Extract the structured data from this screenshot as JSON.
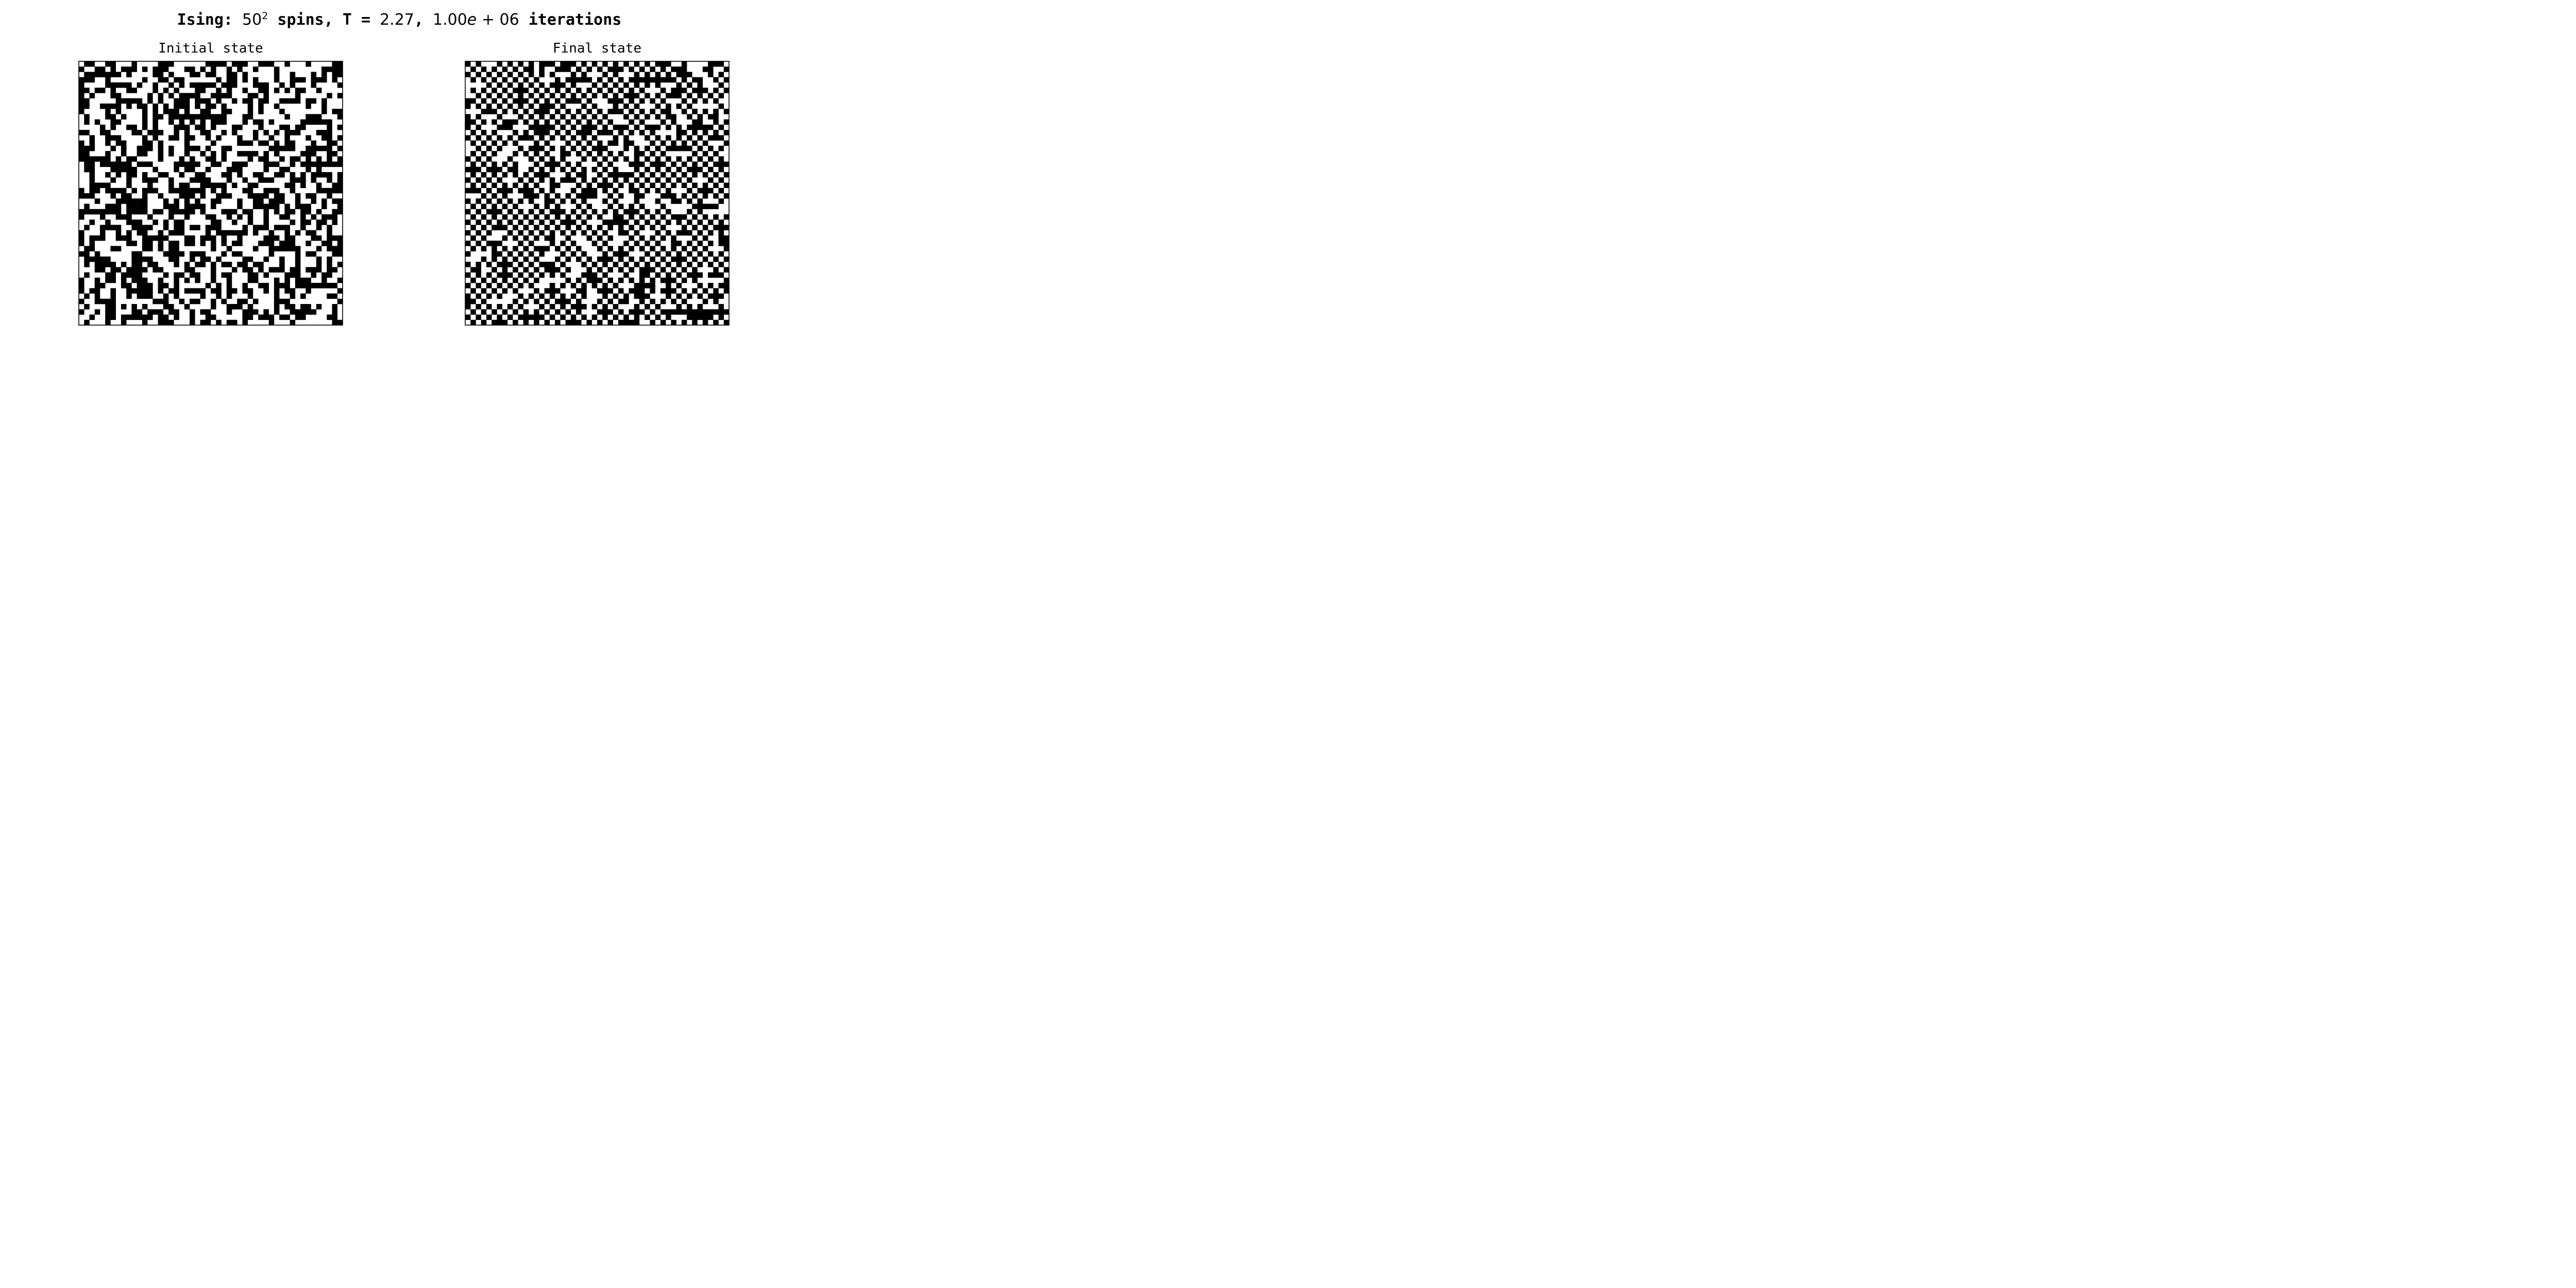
{
  "figure": {
    "title_prefix": "Ising: ",
    "size_base": "50",
    "size_exponent": "2",
    "title_mid": " spins, T = ",
    "temperature": "2.27",
    "title_sep": ", ",
    "iter_mantissa": "1.00",
    "iter_e": "e",
    "iter_plus": "+",
    "iter_exponent": "06",
    "title_suffix": " iterations"
  },
  "chart_data": [
    {
      "type": "heatmap",
      "title": "Initial state",
      "rows": 50,
      "cols": 50,
      "colors": {
        "up": "#000000",
        "down": "#ffffff",
        "frame": "#000000"
      },
      "grid": false,
      "axes": "off",
      "pattern": "random",
      "seed": 12345,
      "spin_up_fraction": 0.5
    },
    {
      "type": "heatmap",
      "title": "Final state",
      "rows": 50,
      "cols": 50,
      "colors": {
        "up": "#000000",
        "down": "#ffffff",
        "frame": "#000000"
      },
      "grid": false,
      "axes": "off",
      "pattern": "near-antiferromagnetic",
      "seed": 67890,
      "defect_fraction": 0.12
    }
  ]
}
